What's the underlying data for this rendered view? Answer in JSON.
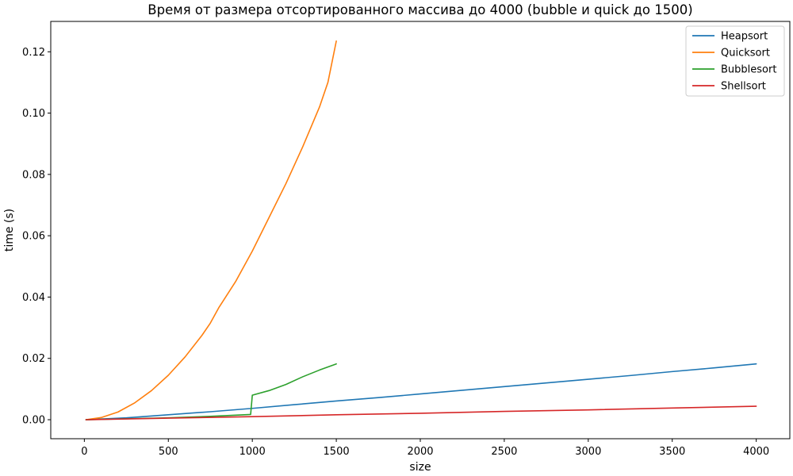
{
  "chart_data": {
    "type": "line",
    "title": "Время от размера отсортированного массива до 4000 (bubble и quick до 1500)",
    "xlabel": "size",
    "ylabel": "time (s)",
    "xlim": [
      -200,
      4200
    ],
    "ylim": [
      -0.0062,
      0.1299
    ],
    "xticks": [
      0,
      500,
      1000,
      1500,
      2000,
      2500,
      3000,
      3500,
      4000
    ],
    "xtick_labels": [
      "0",
      "500",
      "1000",
      "1500",
      "2000",
      "2500",
      "3000",
      "3500",
      "4000"
    ],
    "yticks": [
      0.0,
      0.02,
      0.04,
      0.06,
      0.08,
      0.1,
      0.12
    ],
    "ytick_labels": [
      "0.00",
      "0.02",
      "0.04",
      "0.06",
      "0.08",
      "0.10",
      "0.12"
    ],
    "grid": false,
    "legend_position": "top-right",
    "series": [
      {
        "name": "Heapsort",
        "color": "#1f77b4",
        "x": [
          10,
          250,
          500,
          750,
          1000,
          1250,
          1500,
          1750,
          2000,
          2250,
          2500,
          2750,
          3000,
          3250,
          3500,
          3750,
          4000
        ],
        "y": [
          0.0,
          0.0006,
          0.0016,
          0.0026,
          0.0037,
          0.0049,
          0.0061,
          0.0072,
          0.0084,
          0.0096,
          0.0108,
          0.012,
          0.0132,
          0.0144,
          0.0157,
          0.0169,
          0.0182
        ]
      },
      {
        "name": "Quicksort",
        "color": "#ff7f0e",
        "x": [
          10,
          100,
          200,
          300,
          400,
          500,
          600,
          700,
          750,
          800,
          900,
          1000,
          1100,
          1200,
          1300,
          1400,
          1450,
          1500
        ],
        "y": [
          0.0,
          0.0007,
          0.0025,
          0.0055,
          0.0095,
          0.0145,
          0.0205,
          0.0275,
          0.0315,
          0.0365,
          0.045,
          0.055,
          0.066,
          0.077,
          0.089,
          0.102,
          0.11,
          0.1235
        ]
      },
      {
        "name": "Bubblesort",
        "color": "#2ca02c",
        "x": [
          10,
          250,
          500,
          750,
          990,
          1000,
          1100,
          1200,
          1300,
          1400,
          1500
        ],
        "y": [
          0.0,
          0.0003,
          0.0006,
          0.0011,
          0.0017,
          0.008,
          0.0095,
          0.0115,
          0.014,
          0.0162,
          0.0182
        ]
      },
      {
        "name": "Shellsort",
        "color": "#d62728",
        "x": [
          10,
          500,
          1000,
          1500,
          2000,
          2500,
          3000,
          3500,
          4000
        ],
        "y": [
          0.0,
          0.0005,
          0.001,
          0.0016,
          0.0021,
          0.0027,
          0.0032,
          0.0038,
          0.0044
        ]
      }
    ]
  }
}
